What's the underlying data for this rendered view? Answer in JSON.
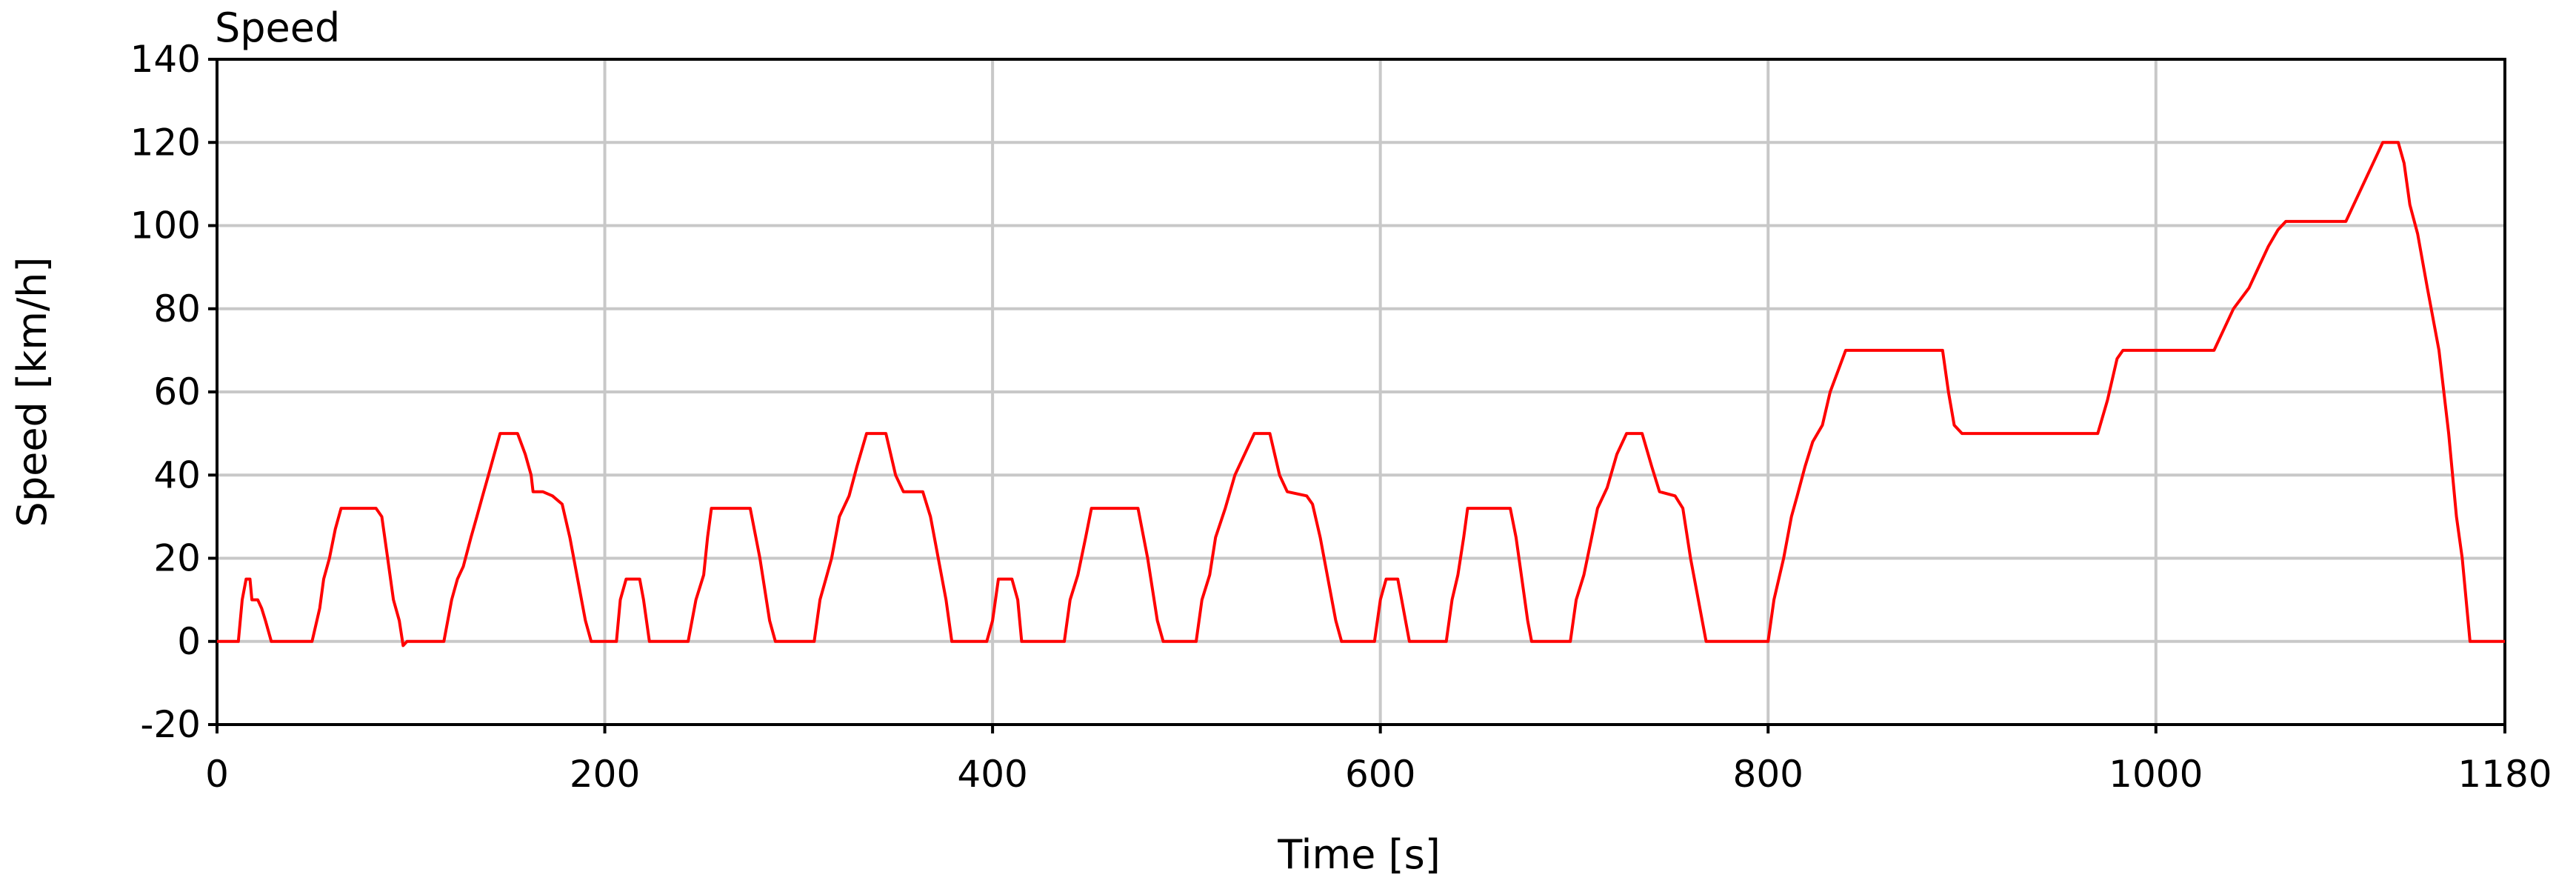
{
  "chart_data": {
    "type": "line",
    "title": "Speed",
    "xlabel": "Time [s]",
    "ylabel": "Speed [km/h]",
    "xlim": [
      0,
      1180
    ],
    "ylim": [
      -20,
      140
    ],
    "x_ticks": [
      0,
      200,
      400,
      600,
      800,
      1000,
      1180
    ],
    "y_ticks": [
      -20,
      0,
      20,
      40,
      60,
      80,
      100,
      120,
      140
    ],
    "x_tick_labels": [
      "0",
      "200",
      "400",
      "600",
      "800",
      "1000",
      "1180"
    ],
    "y_tick_labels": [
      "-20",
      "0",
      "20",
      "40",
      "60",
      "80",
      "100",
      "120",
      "140"
    ],
    "grid": true,
    "line_color": "#ff0000",
    "series": [
      {
        "points": [
          [
            0,
            0
          ],
          [
            11,
            0
          ],
          [
            13,
            10
          ],
          [
            15,
            15
          ],
          [
            17,
            15
          ],
          [
            18,
            10
          ],
          [
            21,
            10
          ],
          [
            23,
            8
          ],
          [
            25,
            5
          ],
          [
            28,
            0
          ],
          [
            49,
            0
          ],
          [
            53,
            8
          ],
          [
            55,
            15
          ],
          [
            58,
            20
          ],
          [
            61,
            27
          ],
          [
            64,
            32
          ],
          [
            73,
            32
          ],
          [
            82,
            32
          ],
          [
            85,
            30
          ],
          [
            88,
            20
          ],
          [
            91,
            10
          ],
          [
            94,
            5
          ],
          [
            96,
            -1
          ],
          [
            98,
            0
          ],
          [
            117,
            0
          ],
          [
            121,
            10
          ],
          [
            124,
            15
          ],
          [
            127,
            18
          ],
          [
            131,
            25
          ],
          [
            134,
            30
          ],
          [
            137,
            35
          ],
          [
            140,
            40
          ],
          [
            143,
            45
          ],
          [
            146,
            50
          ],
          [
            155,
            50
          ],
          [
            159,
            45
          ],
          [
            162,
            40
          ],
          [
            163,
            36
          ],
          [
            168,
            36
          ],
          [
            173,
            35
          ],
          [
            178,
            33
          ],
          [
            182,
            25
          ],
          [
            186,
            15
          ],
          [
            190,
            5
          ],
          [
            193,
            0
          ],
          [
            206,
            0
          ],
          [
            208,
            10
          ],
          [
            211,
            15
          ],
          [
            218,
            15
          ],
          [
            220,
            10
          ],
          [
            223,
            0
          ],
          [
            243,
            0
          ],
          [
            247,
            10
          ],
          [
            251,
            16
          ],
          [
            253,
            25
          ],
          [
            255,
            32
          ],
          [
            263,
            32
          ],
          [
            275,
            32
          ],
          [
            280,
            20
          ],
          [
            285,
            5
          ],
          [
            288,
            0
          ],
          [
            308,
            0
          ],
          [
            311,
            10
          ],
          [
            314,
            15
          ],
          [
            317,
            20
          ],
          [
            321,
            30
          ],
          [
            326,
            35
          ],
          [
            330,
            42
          ],
          [
            335,
            50
          ],
          [
            345,
            50
          ],
          [
            350,
            40
          ],
          [
            354,
            36
          ],
          [
            364,
            36
          ],
          [
            368,
            30
          ],
          [
            372,
            20
          ],
          [
            376,
            10
          ],
          [
            379,
            0
          ],
          [
            397,
            0
          ],
          [
            400,
            5
          ],
          [
            403,
            15
          ],
          [
            410,
            15
          ],
          [
            413,
            10
          ],
          [
            415,
            0
          ],
          [
            437,
            0
          ],
          [
            440,
            10
          ],
          [
            444,
            16
          ],
          [
            448,
            25
          ],
          [
            451,
            32
          ],
          [
            465,
            32
          ],
          [
            475,
            32
          ],
          [
            480,
            20
          ],
          [
            485,
            5
          ],
          [
            488,
            0
          ],
          [
            505,
            0
          ],
          [
            508,
            10
          ],
          [
            512,
            16
          ],
          [
            515,
            25
          ],
          [
            520,
            32
          ],
          [
            525,
            40
          ],
          [
            530,
            45
          ],
          [
            535,
            50
          ],
          [
            543,
            50
          ],
          [
            548,
            40
          ],
          [
            552,
            36
          ],
          [
            562,
            35
          ],
          [
            565,
            33
          ],
          [
            569,
            25
          ],
          [
            573,
            15
          ],
          [
            577,
            5
          ],
          [
            580,
            0
          ],
          [
            597,
            0
          ],
          [
            600,
            10
          ],
          [
            603,
            15
          ],
          [
            609,
            15
          ],
          [
            611,
            10
          ],
          [
            613,
            5
          ],
          [
            615,
            0
          ],
          [
            634,
            0
          ],
          [
            637,
            10
          ],
          [
            640,
            16
          ],
          [
            643,
            25
          ],
          [
            645,
            32
          ],
          [
            655,
            32
          ],
          [
            667,
            32
          ],
          [
            670,
            25
          ],
          [
            673,
            15
          ],
          [
            676,
            5
          ],
          [
            678,
            0
          ],
          [
            698,
            0
          ],
          [
            701,
            10
          ],
          [
            705,
            16
          ],
          [
            709,
            25
          ],
          [
            712,
            32
          ],
          [
            717,
            37
          ],
          [
            722,
            45
          ],
          [
            727,
            50
          ],
          [
            735,
            50
          ],
          [
            740,
            42
          ],
          [
            744,
            36
          ],
          [
            752,
            35
          ],
          [
            756,
            32
          ],
          [
            760,
            20
          ],
          [
            764,
            10
          ],
          [
            768,
            0
          ],
          [
            800,
            0
          ],
          [
            803,
            10
          ],
          [
            808,
            20
          ],
          [
            812,
            30
          ],
          [
            815,
            35
          ],
          [
            819,
            42
          ],
          [
            823,
            48
          ],
          [
            828,
            52
          ],
          [
            832,
            60
          ],
          [
            836,
            65
          ],
          [
            840,
            70
          ],
          [
            855,
            70
          ],
          [
            870,
            70
          ],
          [
            890,
            70
          ],
          [
            893,
            60
          ],
          [
            896,
            52
          ],
          [
            900,
            50
          ],
          [
            940,
            50
          ],
          [
            970,
            50
          ],
          [
            975,
            58
          ],
          [
            980,
            68
          ],
          [
            983,
            70
          ],
          [
            1000,
            70
          ],
          [
            1030,
            70
          ],
          [
            1035,
            75
          ],
          [
            1040,
            80
          ],
          [
            1048,
            85
          ],
          [
            1053,
            90
          ],
          [
            1058,
            95
          ],
          [
            1063,
            99
          ],
          [
            1067,
            101
          ],
          [
            1080,
            101
          ],
          [
            1098,
            101
          ],
          [
            1102,
            105
          ],
          [
            1107,
            110
          ],
          [
            1112,
            115
          ],
          [
            1117,
            120
          ],
          [
            1125,
            120
          ],
          [
            1128,
            115
          ],
          [
            1131,
            105
          ],
          [
            1135,
            98
          ],
          [
            1140,
            85
          ],
          [
            1146,
            70
          ],
          [
            1151,
            50
          ],
          [
            1155,
            30
          ],
          [
            1158,
            20
          ],
          [
            1162,
            0
          ],
          [
            1180,
            0
          ]
        ]
      }
    ]
  }
}
